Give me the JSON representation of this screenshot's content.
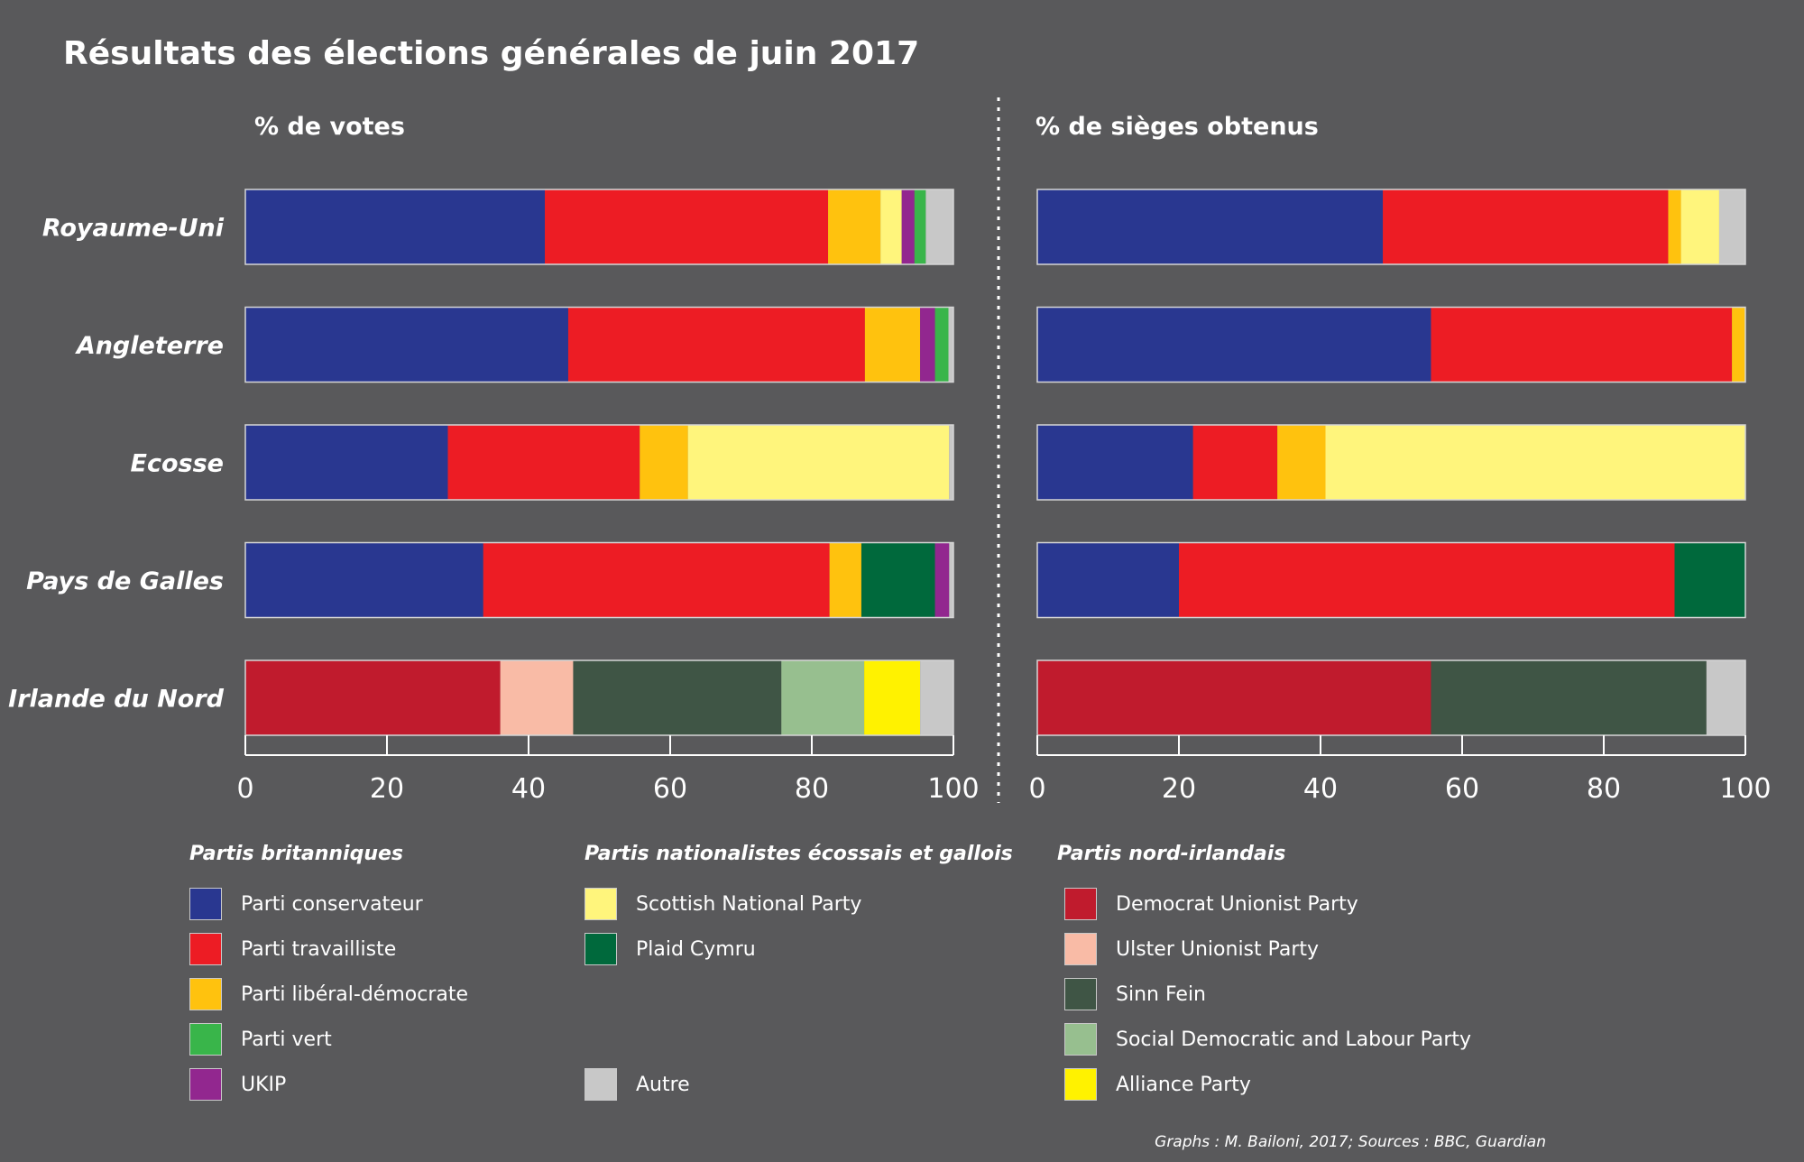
{
  "title": "Résultats des élections générales de juin 2017",
  "parties": {
    "con": {
      "label": "Parti conservateur",
      "color": "#293790"
    },
    "lab": {
      "label": "Parti travailliste",
      "color": "#ed1c24"
    },
    "ld": {
      "label": "Parti libéral-démocrate",
      "color": "#ffc20e"
    },
    "grn": {
      "label": "Parti vert",
      "color": "#39b54a"
    },
    "ukip": {
      "label": "UKIP",
      "color": "#92278f"
    },
    "snp": {
      "label": "Scottish National Party",
      "color": "#fff57c"
    },
    "pc": {
      "label": "Plaid Cymru",
      "color": "#00693c"
    },
    "oth": {
      "label": "Autre",
      "color": "#c8c8c8"
    },
    "dup": {
      "label": "Democrat Unionist Party",
      "color": "#c01b2d"
    },
    "uup": {
      "label": "Ulster Unionist Party",
      "color": "#f9bba6"
    },
    "sf": {
      "label": "Sinn Fein",
      "color": "#3f5545"
    },
    "sdlp": {
      "label": "Social Democratic and Labour Party",
      "color": "#97bf8f"
    },
    "ap": {
      "label": "Alliance Party",
      "color": "#fff200"
    }
  },
  "legend": {
    "groups": [
      {
        "title": "Partis britanniques",
        "items": [
          "con",
          "lab",
          "ld",
          "grn",
          "ukip"
        ]
      },
      {
        "title": "Partis nationalistes écossais et gallois",
        "items": [
          "snp",
          "pc",
          "oth"
        ]
      },
      {
        "title": "Partis nord-irlandais",
        "items": [
          "dup",
          "uup",
          "sf",
          "sdlp",
          "ap"
        ]
      }
    ]
  },
  "chart_data": [
    {
      "type": "bar",
      "orientation": "horizontal",
      "stacked": true,
      "title": "% de votes",
      "xlim": [
        0,
        100
      ],
      "xticks": [
        0,
        20,
        40,
        60,
        80,
        100
      ],
      "categories": [
        "Royaume-Uni",
        "Angleterre",
        "Ecosse",
        "Pays de Galles",
        "Irlande du Nord"
      ],
      "series": [
        {
          "name": "Parti conservateur",
          "key": "con",
          "values": [
            42.3,
            45.6,
            28.6,
            33.6,
            0
          ]
        },
        {
          "name": "Parti travailliste",
          "key": "lab",
          "values": [
            40.0,
            41.9,
            27.1,
            48.9,
            0
          ]
        },
        {
          "name": "Parti libéral-démocrate",
          "key": "ld",
          "values": [
            7.4,
            7.8,
            6.8,
            4.5,
            0
          ]
        },
        {
          "name": "Scottish National Party",
          "key": "snp",
          "values": [
            3.0,
            0,
            36.9,
            0,
            0
          ]
        },
        {
          "name": "UKIP",
          "key": "ukip",
          "values": [
            1.8,
            2.1,
            0,
            0,
            0
          ]
        },
        {
          "name": "Plaid Cymru",
          "key": "pc",
          "values": [
            0,
            0,
            0,
            10.4,
            0
          ]
        },
        {
          "name": "Parti vert",
          "key": "grn",
          "values": [
            1.6,
            1.9,
            0,
            0,
            0
          ]
        },
        {
          "name": "UKIP ",
          "key": "ukip",
          "values": [
            0,
            0,
            0,
            2.0,
            0
          ]
        },
        {
          "name": "Democrat Unionist Party",
          "key": "dup",
          "values": [
            0,
            0,
            0,
            0,
            36.0
          ]
        },
        {
          "name": "Ulster Unionist Party",
          "key": "uup",
          "values": [
            0,
            0,
            0,
            0,
            10.3
          ]
        },
        {
          "name": "Sinn Fein",
          "key": "sf",
          "values": [
            0,
            0,
            0,
            0,
            29.4
          ]
        },
        {
          "name": "Social Democratic and Labour Party",
          "key": "sdlp",
          "values": [
            0,
            0,
            0,
            0,
            11.7
          ]
        },
        {
          "name": "Alliance Party",
          "key": "ap",
          "values": [
            0,
            0,
            0,
            0,
            7.9
          ]
        },
        {
          "name": "Autre",
          "key": "oth",
          "values": [
            3.9,
            0.7,
            0.6,
            0.6,
            4.7
          ]
        }
      ]
    },
    {
      "type": "bar",
      "orientation": "horizontal",
      "stacked": true,
      "title": "% de sièges obtenus",
      "xlim": [
        0,
        100
      ],
      "xticks": [
        0,
        20,
        40,
        60,
        80,
        100
      ],
      "categories": [
        "Royaume-Uni",
        "Angleterre",
        "Ecosse",
        "Pays de Galles",
        "Irlande du Nord"
      ],
      "series": [
        {
          "name": "Parti conservateur",
          "key": "con",
          "values": [
            48.8,
            55.6,
            22.0,
            20.0,
            0
          ]
        },
        {
          "name": "Parti travailliste",
          "key": "lab",
          "values": [
            40.3,
            42.5,
            11.9,
            70.0,
            0
          ]
        },
        {
          "name": "Parti libéral-démocrate",
          "key": "ld",
          "values": [
            1.8,
            1.9,
            6.8,
            0,
            0
          ]
        },
        {
          "name": "Scottish National Party",
          "key": "snp",
          "values": [
            5.4,
            0,
            59.3,
            0,
            0
          ]
        },
        {
          "name": "Plaid Cymru",
          "key": "pc",
          "values": [
            0,
            0,
            0,
            10.0,
            0
          ]
        },
        {
          "name": "Democrat Unionist Party",
          "key": "dup",
          "values": [
            0,
            0,
            0,
            0,
            55.6
          ]
        },
        {
          "name": "Sinn Fein",
          "key": "sf",
          "values": [
            0,
            0,
            0,
            0,
            38.9
          ]
        },
        {
          "name": "Autre",
          "key": "oth",
          "values": [
            3.7,
            0,
            0,
            0,
            5.5
          ]
        }
      ]
    }
  ],
  "footer": "Graphs : M. Bailoni, 2017; Sources : BBC, Guardian"
}
